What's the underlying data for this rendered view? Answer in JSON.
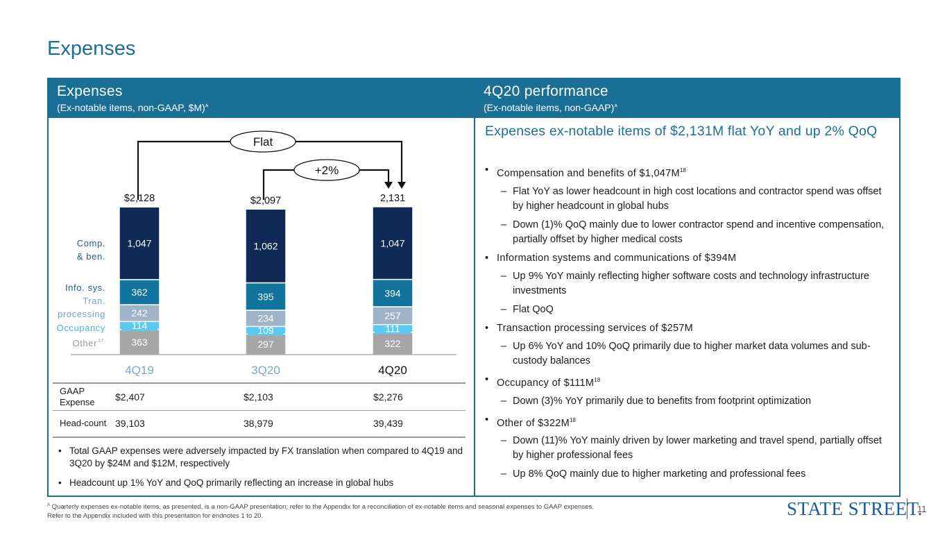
{
  "page": {
    "title": "Expenses",
    "page_number": "11"
  },
  "left_panel": {
    "header_title": "Expenses",
    "header_subtitle": "(Ex-notable items, non-GAAP, $M)",
    "header_sup": "A"
  },
  "chart_data": {
    "type": "bar",
    "stacked": true,
    "categories": [
      "4Q19",
      "3Q20",
      "4Q20"
    ],
    "series": [
      {
        "name": "Other",
        "name_sup": "17",
        "values": [
          363,
          297,
          322
        ],
        "color": "#a6a6a6"
      },
      {
        "name": "Occupancy",
        "values": [
          114,
          109,
          111
        ],
        "color": "#5ccaef"
      },
      {
        "name": "Tran. processing",
        "values": [
          242,
          234,
          257
        ],
        "color": "#9fb4c8"
      },
      {
        "name": "Info. sys.",
        "values": [
          362,
          395,
          394
        ],
        "color": "#11749c"
      },
      {
        "name": "Comp. & ben.",
        "values": [
          1047,
          1062,
          1047
        ],
        "color": "#0f2a56"
      }
    ],
    "totals": [
      "$2,128",
      "$2,097",
      "2,131"
    ],
    "legend_labels": [
      "Comp.",
      "& ben.",
      "Info. sys.",
      "Tran.",
      "processing",
      "Occupancy",
      "Other"
    ],
    "annotations": [
      {
        "label": "Flat",
        "from": "4Q19",
        "to": "4Q20"
      },
      {
        "label": "+2%",
        "from": "3Q20",
        "to": "4Q20"
      }
    ],
    "colors": {
      "label_muted": "#6fa3c7",
      "label_strong": "#1f5e8c",
      "category_muted": "#7aa6c8"
    }
  },
  "table": {
    "rows": [
      {
        "label": "GAAP Expense",
        "values": [
          "$2,407",
          "$2,103",
          "$2,276"
        ]
      },
      {
        "label": "Head-count",
        "values": [
          "39,103",
          "38,979",
          "39,439"
        ]
      }
    ]
  },
  "notes": [
    "Total GAAP expenses were adversely impacted by FX translation when compared to 4Q19 and 3Q20 by $24M and $12M, respectively",
    "Headcount up 1% YoY and QoQ primarily reflecting an increase in global hubs"
  ],
  "right_panel": {
    "header_title": "4Q20 performance",
    "header_subtitle": "(Ex-notable items, non-GAAP)",
    "header_sup": "A",
    "headline": "Expenses ex-notable items of $2,131M flat YoY and up 2% QoQ",
    "bullets": [
      {
        "text": "Compensation and benefits of $1,047M",
        "sup": "18",
        "subs": [
          "Flat YoY as lower headcount in high cost locations and contractor spend was offset by higher headcount in global hubs",
          "Down (1)% QoQ mainly due to lower contractor spend and incentive compensation, partially offset by higher medical costs"
        ]
      },
      {
        "text": "Information systems and communications of $394M",
        "sup": "",
        "subs": [
          "Up 9% YoY mainly reflecting higher software costs and technology infrastructure investments",
          "Flat QoQ"
        ]
      },
      {
        "text": "Transaction processing services of $257M",
        "sup": "",
        "subs": [
          "Up 6% YoY and 10% QoQ primarily due to higher market data volumes and sub-custody balances"
        ]
      },
      {
        "text": "Occupancy of $111M",
        "sup": "18",
        "subs": [
          "Down (3)% YoY primarily due to benefits from footprint optimization"
        ]
      },
      {
        "text": "Other of $322M",
        "sup": "18",
        "subs": [
          "Down (11)% YoY mainly driven by lower marketing and travel spend, partially offset by higher professional fees",
          "Up 8% QoQ mainly due to higher marketing and professional fees"
        ]
      }
    ]
  },
  "footnotes": {
    "sup": "A",
    "line1": "Quarterly expenses ex-notable items, as presented, is a non-GAAP presentation; refer to the Appendix for a reconciliation of ex-notable items and seasonal expenses to GAAP expenses.",
    "line2": "Refer to the Appendix included with this presentation for endnotes 1 to 20."
  },
  "logo": {
    "text": "STATE STREET",
    "mark": "."
  }
}
